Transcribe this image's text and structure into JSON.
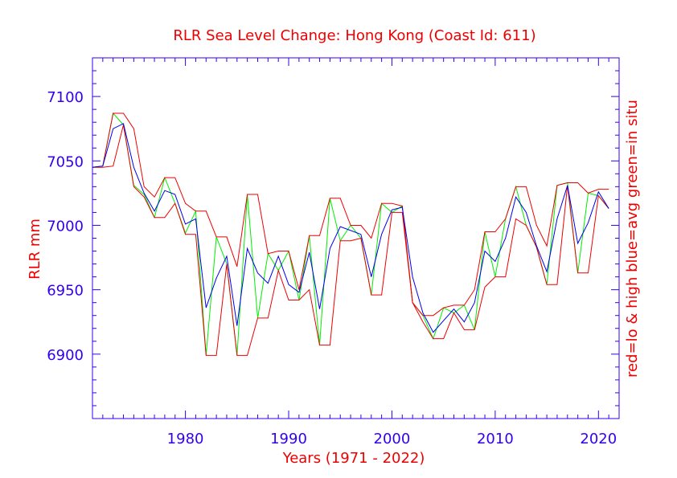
{
  "chart_data": {
    "type": "line",
    "title": "RLR Sea Level Change: Hong Kong (Coast Id: 611)",
    "xlabel": "Years (1971 - 2022)",
    "ylabel": "RLR mm",
    "ylabel_right": "red=lo & high  blue=avg  green=in situ",
    "xlim": [
      1971,
      2022
    ],
    "ylim": [
      6850,
      7130
    ],
    "x_ticks": [
      1980,
      1990,
      2000,
      2010,
      2020
    ],
    "y_ticks": [
      6900,
      6950,
      7000,
      7050,
      7100
    ],
    "grid": false,
    "colors": {
      "low": "#ee0000",
      "high": "#ee0000",
      "avg": "#0000ee",
      "insitu": "#00ee00",
      "axis": "#3300ee",
      "text": "#ee0000"
    },
    "x": [
      1971,
      1972,
      1973,
      1974,
      1975,
      1976,
      1977,
      1978,
      1979,
      1980,
      1981,
      1982,
      1983,
      1984,
      1985,
      1986,
      1987,
      1988,
      1989,
      1990,
      1991,
      1992,
      1993,
      1994,
      1995,
      1996,
      1997,
      1998,
      1999,
      2000,
      2001,
      2002,
      2003,
      2004,
      2005,
      2006,
      2007,
      2008,
      2009,
      2010,
      2011,
      2012,
      2013,
      2014,
      2015,
      2016,
      2017,
      2018,
      2019,
      2020,
      2021
    ],
    "series": [
      {
        "key": "high",
        "values": [
          7045,
          7046,
          7087,
          7087,
          7075,
          7030,
          7022,
          7037,
          7037,
          7017,
          7011,
          7011,
          6991,
          6991,
          6968,
          7024,
          7024,
          6978,
          6980,
          6980,
          6950,
          6992,
          6992,
          7021,
          7021,
          7000,
          7000,
          6990,
          7017,
          7017,
          7015,
          6940,
          6930,
          6930,
          6936,
          6938,
          6938,
          6950,
          6995,
          6995,
          7005,
          7030,
          7030,
          7000,
          6984,
          7031,
          7033,
          7033,
          7025,
          7028,
          7028
        ]
      },
      {
        "key": "low",
        "values": [
          7045,
          7045,
          7046,
          7078,
          7030,
          7022,
          7006,
          7006,
          7017,
          6993,
          6993,
          6899,
          6899,
          6970,
          6899,
          6899,
          6928,
          6928,
          6965,
          6942,
          6942,
          6950,
          6907,
          6907,
          6988,
          6988,
          6990,
          6946,
          6946,
          7010,
          7010,
          6940,
          6925,
          6912,
          6912,
          6932,
          6919,
          6919,
          6952,
          6960,
          6960,
          7005,
          7000,
          6983,
          6954,
          6954,
          7031,
          6963,
          6963,
          7023,
          7013
        ]
      },
      {
        "key": "avg",
        "values": [
          7045,
          7046,
          7075,
          7079,
          7045,
          7025,
          7011,
          7027,
          7024,
          7001,
          7005,
          6936,
          6959,
          6976,
          6922,
          6982,
          6963,
          6955,
          6976,
          6954,
          6948,
          6979,
          6935,
          6982,
          6999,
          6996,
          6993,
          6960,
          6993,
          7012,
          7014,
          6960,
          6932,
          6917,
          6926,
          6935,
          6925,
          6940,
          6980,
          6972,
          6990,
          7022,
          7010,
          6984,
          6964,
          7005,
          7031,
          6986,
          7002,
          7026,
          7013
        ]
      },
      {
        "key": "insitu",
        "values": [
          7045,
          7046,
          7087,
          7078,
          7031,
          7024,
          7006,
          7037,
          7017,
          6994,
          7011,
          6899,
          6991,
          6970,
          6899,
          7024,
          6928,
          6978,
          6965,
          6980,
          6942,
          6992,
          6907,
          7021,
          6988,
          7000,
          6990,
          6946,
          7017,
          7010,
          7015,
          6940,
          6930,
          6912,
          6936,
          6932,
          6938,
          6919,
          6995,
          6960,
          7005,
          7030,
          7000,
          6983,
          6954,
          7031,
          7033,
          6963,
          7025,
          7023,
          7013
        ]
      }
    ]
  }
}
